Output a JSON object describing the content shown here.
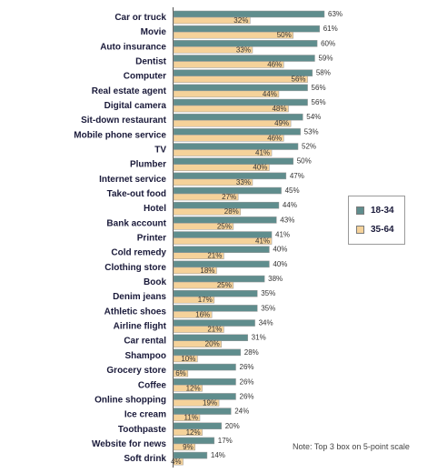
{
  "chart_data": {
    "type": "bar",
    "orientation": "horizontal",
    "categories": [
      "Car or truck",
      "Movie",
      "Auto insurance",
      "Dentist",
      "Computer",
      "Real estate agent",
      "Digital camera",
      "Sit-down restaurant",
      "Mobile phone service",
      "TV",
      "Plumber",
      "Internet service",
      "Take-out food",
      "Hotel",
      "Bank account",
      "Printer",
      "Cold remedy",
      "Clothing store",
      "Book",
      "Denim jeans",
      "Athletic shoes",
      "Airline flight",
      "Car rental",
      "Shampoo",
      "Grocery store",
      "Coffee",
      "Online shopping",
      "Ice cream",
      "Toothpaste",
      "Website for news",
      "Soft drink"
    ],
    "series": [
      {
        "name": "18-34",
        "color": "#5f8d8d",
        "values": [
          63,
          61,
          60,
          59,
          58,
          56,
          56,
          54,
          53,
          52,
          50,
          47,
          45,
          44,
          43,
          41,
          40,
          40,
          38,
          35,
          35,
          34,
          31,
          28,
          26,
          26,
          26,
          24,
          20,
          17,
          14
        ]
      },
      {
        "name": "35-64",
        "color": "#f5d29a",
        "values": [
          32,
          50,
          33,
          46,
          56,
          44,
          48,
          49,
          46,
          41,
          40,
          33,
          27,
          28,
          25,
          41,
          21,
          18,
          25,
          17,
          16,
          21,
          20,
          10,
          6,
          12,
          19,
          11,
          12,
          9,
          4
        ]
      }
    ],
    "value_suffix": "%",
    "xlim": [
      0,
      63
    ],
    "grid": false,
    "legend_position": "right",
    "note": "Note: Top 3 box on 5-point scale"
  }
}
